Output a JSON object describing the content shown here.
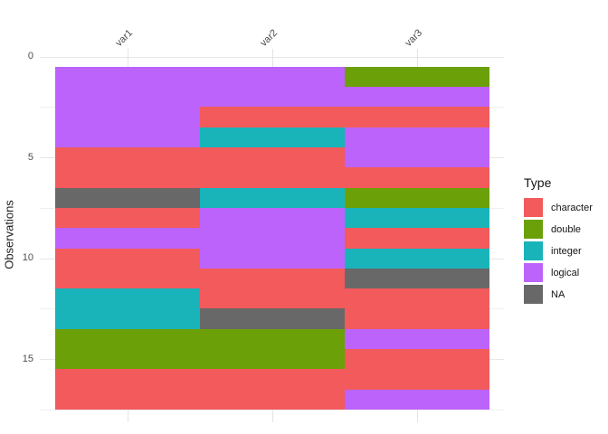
{
  "chart_data": {
    "type": "heatmap",
    "title": "",
    "xlabel": "",
    "ylabel": "Observations",
    "columns": [
      "var1",
      "var2",
      "var3"
    ],
    "n_observations": 17,
    "y_ticks": [
      0,
      5,
      10,
      15
    ],
    "y_minor_ticks": [
      2.5,
      7.5,
      12.5,
      17.5
    ],
    "y_axis_reversed": true,
    "grid": true,
    "legend": {
      "title": "Type",
      "position": "right",
      "items": [
        {
          "label": "character",
          "color": "#F25A5C"
        },
        {
          "label": "double",
          "color": "#6CA008"
        },
        {
          "label": "integer",
          "color": "#18B4BA"
        },
        {
          "label": "logical",
          "color": "#BC63FB"
        },
        {
          "label": "NA",
          "color": "#686868"
        }
      ]
    },
    "series": [
      {
        "name": "var1",
        "types": [
          "logical",
          "logical",
          "logical",
          "logical",
          "character",
          "character",
          "NA",
          "character",
          "logical",
          "character",
          "character",
          "integer",
          "integer",
          "double",
          "double",
          "character",
          "character"
        ]
      },
      {
        "name": "var2",
        "types": [
          "logical",
          "logical",
          "character",
          "integer",
          "character",
          "character",
          "integer",
          "logical",
          "logical",
          "logical",
          "character",
          "character",
          "NA",
          "double",
          "double",
          "character",
          "character"
        ]
      },
      {
        "name": "var3",
        "types": [
          "double",
          "logical",
          "character",
          "logical",
          "logical",
          "character",
          "double",
          "integer",
          "character",
          "integer",
          "NA",
          "character",
          "character",
          "logical",
          "character",
          "character",
          "logical"
        ]
      }
    ]
  }
}
